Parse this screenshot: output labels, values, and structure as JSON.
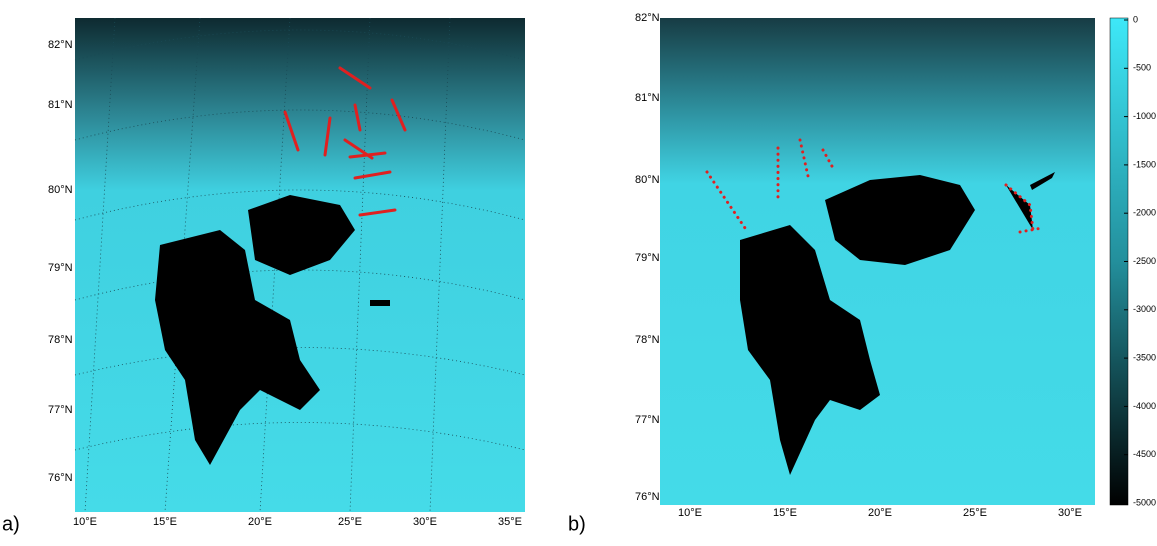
{
  "panels": [
    {
      "label": "a)",
      "lat_labels": [
        "82°N",
        "81°N",
        "80°N",
        "79°N",
        "78°N",
        "77°N",
        "76°N"
      ],
      "lon_labels": [
        "10°E",
        "15°E",
        "20°E",
        "25°E",
        "30°E",
        "35°E"
      ]
    },
    {
      "label": "b)",
      "lat_labels": [
        "82°N",
        "81°N",
        "80°N",
        "79°N",
        "78°N",
        "77°N",
        "76°N"
      ],
      "lon_labels": [
        "10°E",
        "15°E",
        "20°E",
        "25°E",
        "30°E"
      ]
    }
  ],
  "colorbar": {
    "clim": [
      -5000,
      0
    ],
    "ticks": [
      0,
      -500,
      -1000,
      -1500,
      -2000,
      -2500,
      -3000,
      -3500,
      -4000,
      -4500,
      -5000
    ]
  }
}
